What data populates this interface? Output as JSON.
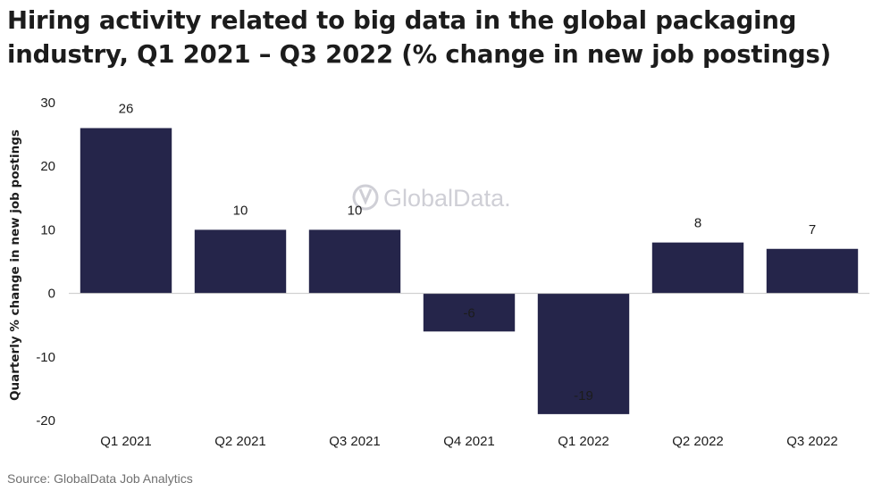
{
  "title": "Hiring activity related to big data in the global packaging industry, Q1 2021 – Q3 2022 (% change in new job postings)",
  "source": "Source: GlobalData Job Analytics",
  "watermark": "GlobalData.",
  "colors": {
    "bar": "#25254a",
    "axis": "#c8c8c8",
    "watermark": "#cfcfd6"
  },
  "chart_data": {
    "type": "bar",
    "categories": [
      "Q1 2021",
      "Q2 2021",
      "Q3 2021",
      "Q4 2021",
      "Q1 2022",
      "Q2 2022",
      "Q3 2022"
    ],
    "values": [
      26,
      10,
      10,
      -6,
      -19,
      8,
      7
    ],
    "data_labels": [
      "26",
      "10",
      "10",
      "-6",
      "-19",
      "8",
      "7"
    ],
    "title": "Hiring activity related to big data in the global packaging industry, Q1 2021 – Q3 2022 (% change in new job postings)",
    "xlabel": "",
    "ylabel": "Quarterly % change in new job postings",
    "ylim": [
      -20,
      30
    ],
    "yticks": [
      30,
      20,
      10,
      0,
      -10,
      -20
    ],
    "grid": false,
    "legend": "none"
  }
}
